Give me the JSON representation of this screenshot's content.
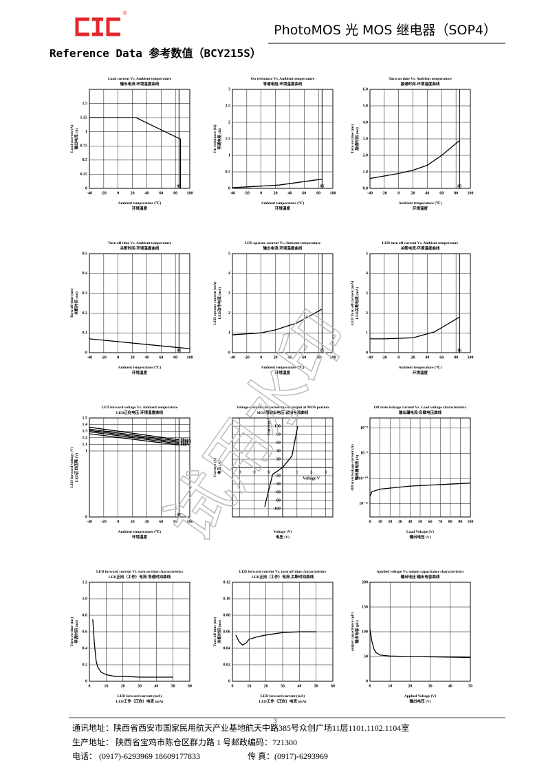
{
  "header": {
    "logo_mark": "®",
    "title": "PhotoMOS 光 MOS 继电器（SOP4）"
  },
  "section_title": "Reference Data 参考数值（BCY215S）",
  "watermark": "试用水印",
  "page_number": "3",
  "footer": [
    "通讯地址：陕西省西安市国家民用航天产业基地航天中路385号众创广场11层1101.1102.1104室",
    "生产地址：  陕西省宝鸡市陈仓区群力路 1 号邮政编码：721300",
    "电话：   (0917)-6293969    18609177833",
    "传    真：(0917)-6293969"
  ],
  "chart_data": [
    {
      "type": "line",
      "title": "Load current Vs. Ambient temperature",
      "subtitle": "输出电流-环境温度曲线",
      "xlabel": "Ambient temperature (℃)",
      "xlabel2": "环境温度",
      "ylabel": "Load current (A)",
      "ylabel2": "输出电流 (A)",
      "x": [
        -40,
        25,
        87,
        87
      ],
      "values": [
        1.25,
        1.25,
        0.87,
        0
      ],
      "color": "#000000",
      "xlim": [
        -40,
        100
      ],
      "xticks": [
        -40,
        -20,
        0,
        20,
        40,
        60,
        80,
        100
      ],
      "ylim": [
        0,
        1.75
      ],
      "yticks": [
        0,
        0.25,
        0.5,
        0.75,
        1,
        1.25,
        1.5
      ],
      "vline": 85,
      "grid": true
    },
    {
      "type": "line",
      "title": "On resistance Vs. Ambient temperature",
      "subtitle": "导通电阻-环境温度曲线",
      "xlabel": "Ambient temperature (℃)",
      "xlabel2": "环境温度",
      "ylabel": "On resistance (Ω)",
      "ylabel2": "导通电阻 (Ω)",
      "x": [
        -40,
        25,
        85
      ],
      "values": [
        0.02,
        0.1,
        0.28
      ],
      "color": "#000000",
      "xlim": [
        -40,
        100
      ],
      "xticks": [
        -40,
        -20,
        0,
        20,
        40,
        60,
        80,
        100
      ],
      "ylim": [
        0,
        3
      ],
      "yticks": [
        0,
        0.5,
        1,
        1.5,
        2,
        2.5,
        3
      ],
      "vline": 85,
      "grid": true
    },
    {
      "type": "line",
      "title": "Turn on time Vs. Ambient temperature",
      "subtitle": "接通时间-环境温度曲线",
      "xlabel": "Ambient temperature (℃)",
      "xlabel2": "环境温度",
      "ylabel": "Turn on time (ms)",
      "ylabel2": "接通时间 (ms)",
      "x": [
        -40,
        0,
        20,
        40,
        60,
        85
      ],
      "values": [
        0.6,
        0.9,
        1.1,
        1.4,
        2.0,
        2.9
      ],
      "color": "#000000",
      "xlim": [
        -40,
        100
      ],
      "xticks": [
        -40,
        -20,
        0,
        20,
        40,
        60,
        80,
        100
      ],
      "ylim": [
        0,
        6
      ],
      "yticks": [
        {
          "value": 0,
          "label": "0.0"
        },
        {
          "value": 1,
          "label": "1.0"
        },
        {
          "value": 2,
          "label": "2.0"
        },
        {
          "value": 3,
          "label": "3.0"
        },
        {
          "value": 4,
          "label": "4.0"
        },
        {
          "value": 5,
          "label": "5.0"
        },
        {
          "value": 6,
          "label": "6.0"
        }
      ],
      "vline": 85,
      "grid": true
    },
    {
      "type": "line",
      "title": "Turn off time Vs. Ambient temperature",
      "subtitle": "关断时间-环境温度曲线",
      "xlabel": "Ambient temperature (℃)",
      "xlabel2": "环境温度",
      "ylabel": "Turn off time (ms)",
      "ylabel2": "关断时间 (ms)",
      "x": [
        -40,
        100
      ],
      "values": [
        0.07,
        0.02
      ],
      "color": "#000000",
      "xlim": [
        -40,
        100
      ],
      "xticks": [
        -40,
        -20,
        0,
        20,
        40,
        60,
        80,
        100
      ],
      "ylim": [
        0,
        0.5
      ],
      "yticks": [
        0,
        0.1,
        0.2,
        0.3,
        0.4,
        0.5
      ],
      "vline": 85,
      "grid": true
    },
    {
      "type": "line",
      "title": "LED operate current Vs. Ambient temperature",
      "subtitle": "输出电流-环境温度曲线",
      "xlabel": "Ambient temperature (℃)",
      "xlabel2": "环境温度",
      "ylabel": "LED operate current (mA)",
      "ylabel2": "LED动作电流 (mA)",
      "x": [
        -40,
        0,
        20,
        50,
        85
      ],
      "values": [
        0.9,
        1.0,
        1.15,
        1.5,
        2.2
      ],
      "color": "#000000",
      "xlim": [
        -40,
        100
      ],
      "xticks": [
        -40,
        -20,
        0,
        20,
        40,
        60,
        80,
        100
      ],
      "ylim": [
        0,
        5
      ],
      "yticks": [
        0,
        1,
        2,
        3,
        4,
        5
      ],
      "vline": 85,
      "grid": true
    },
    {
      "type": "line",
      "title": "LED turn off current Vs. Ambient temperature",
      "subtitle": "关断电流-环境温度曲线",
      "xlabel": "Ambient temperature (℃)",
      "xlabel2": "环境温度",
      "ylabel": "LED Turn off current (mA)",
      "ylabel2": "LED关断电流 (mA)",
      "x": [
        -40,
        -20,
        20,
        50,
        85
      ],
      "values": [
        0.7,
        0.7,
        0.75,
        1.05,
        1.8
      ],
      "color": "#000000",
      "xlim": [
        -40,
        100
      ],
      "xticks": [
        -40,
        -20,
        0,
        20,
        40,
        60,
        80,
        100
      ],
      "ylim": [
        0,
        5
      ],
      "yticks": [
        0,
        1,
        2,
        3,
        4,
        5
      ],
      "vline": 85,
      "grid": true
    },
    {
      "type": "line",
      "title": "LED forward voltage Vs. Ambient temperature",
      "subtitle": "LED正向电压-环境温度曲线",
      "xlabel": "Ambient temperature (℃)",
      "xlabel2": "环境温度",
      "ylabel": "LED forward voltage (V)",
      "ylabel2": "LED正向压降 (V)",
      "x": [
        -40,
        85
      ],
      "series": [
        {
          "name": "50mA",
          "color": "#000000",
          "values": [
            1.36,
            1.17
          ]
        },
        {
          "name": "20mA",
          "color": "#000000",
          "values": [
            1.33,
            1.15
          ]
        },
        {
          "name": "10mA",
          "color": "#000000",
          "values": [
            1.31,
            1.13
          ]
        },
        {
          "name": "5mA",
          "color": "#000000",
          "values": [
            1.29,
            1.11
          ]
        },
        {
          "name": "1mA",
          "color": "#000000",
          "values": [
            1.26,
            1.09
          ]
        }
      ],
      "xlim": [
        -40,
        100
      ],
      "xticks": [
        -40,
        -20,
        0,
        20,
        40,
        60,
        80,
        100
      ],
      "ylim": [
        0,
        1.5
      ],
      "yticks": [
        0,
        1,
        1.1,
        1.2,
        1.3,
        1.4,
        1.5
      ],
      "vline": 85,
      "grid": true
    },
    {
      "type": "line",
      "title": "Voltage-current characteristics of output at MOS portion",
      "subtitle": "MOS管输出电压-输出电流曲线",
      "xlabel": "Voltage (V)",
      "xlabel2": "电压 (V)",
      "ylabel": "Current (A)",
      "ylabel2": "电流 (A)",
      "inner_xlabel": "Voltage V",
      "inner_ylabel": "Current A",
      "center_axes": true,
      "x": [
        -1.25,
        -0.7,
        0,
        0.65,
        1.05
      ],
      "values": [
        -95,
        -17,
        0,
        28,
        100
      ],
      "color": "#000000",
      "xlim": [
        -3.5,
        3.5
      ],
      "xticks": [
        -3,
        -2,
        -1,
        1,
        2,
        3
      ],
      "ylim": [
        -120,
        120
      ],
      "yticks": [
        -100,
        -80,
        -60,
        -40,
        -20,
        20,
        40,
        60,
        80,
        100
      ],
      "grid": true
    },
    {
      "type": "line",
      "title": "Off state leakage current Vs. Load voltage characteristics",
      "subtitle": "输出漏电流-负载电压曲线",
      "xlabel": "Load Voltage (V)",
      "xlabel2": "输出电压 (V)",
      "ylabel": "Off state leakage current (A)",
      "ylabel2": "输出漏电流 (A)",
      "log_y": true,
      "x": [
        0,
        2,
        10,
        40,
        100
      ],
      "values": [
        2e-11,
        3e-11,
        3.8e-11,
        5e-11,
        6.6e-11
      ],
      "color": "#000000",
      "xlim": [
        0,
        100
      ],
      "xticks": [
        0,
        10,
        20,
        30,
        40,
        50,
        60,
        70,
        80,
        90,
        100
      ],
      "ylim": [
        3e-12,
        2.5e-08
      ],
      "yticks": [
        {
          "value": 1e-11,
          "label": "10⁻¹¹"
        },
        {
          "value": 1e-10,
          "label": "10⁻¹⁰"
        },
        {
          "value": 1e-09,
          "label": "10⁻⁹"
        },
        {
          "value": 1e-08,
          "label": "10⁻⁸"
        }
      ],
      "grid": true
    },
    {
      "type": "line",
      "title": "LED forward current Vs. turn on time characteristics",
      "subtitle": "LED正向（工作）电流-导通时间曲线",
      "xlabel": "LED forward current (mA)",
      "xlabel2": "LED工作（正向）电流 (mA)",
      "ylabel": "Turn on time (ms)",
      "ylabel2": "导通时间 (ms)",
      "x": [
        2,
        3,
        4,
        5,
        7,
        10,
        15,
        20,
        30,
        50
      ],
      "values": [
        0.75,
        0.45,
        0.25,
        0.17,
        0.11,
        0.08,
        0.06,
        0.06,
        0.05,
        0.05
      ],
      "color": "#000000",
      "xlim": [
        0,
        60
      ],
      "xticks": [
        0,
        10,
        20,
        30,
        40,
        50,
        60
      ],
      "ylim": [
        0,
        1.2
      ],
      "yticks": [
        0,
        0.2,
        0.4,
        0.6,
        0.8,
        {
          "value": 1,
          "label": "1.0"
        },
        1.2
      ],
      "grid": true
    },
    {
      "type": "line",
      "title": "LED forward current Vs. turn off time characteristics",
      "subtitle": "LED正向（工作）电流-关断时间曲线",
      "xlabel": "LED forward current (mA)",
      "xlabel2": "LED工作（正向）电流 (mA)",
      "ylabel": "Turn off time (ms)",
      "ylabel2": "关断时间 (ms)",
      "x": [
        2,
        4,
        6,
        8,
        10,
        15,
        20,
        30,
        40,
        50
      ],
      "values": [
        0.056,
        0.048,
        0.044,
        0.046,
        0.051,
        0.054,
        0.056,
        0.059,
        0.06,
        0.06
      ],
      "color": "#000000",
      "xlim": [
        0,
        60
      ],
      "xticks": [
        0,
        10,
        20,
        30,
        40,
        50,
        60
      ],
      "ylim": [
        0,
        0.12
      ],
      "yticks": [
        0,
        0.02,
        0.04,
        0.06,
        0.08,
        {
          "value": 0.1,
          "label": "0.10"
        },
        0.12
      ],
      "grid": true
    },
    {
      "type": "line",
      "title": "Applied voltage Vs. output capacitance characteristics",
      "subtitle": "输出电压-输出电容曲线",
      "xlabel": "Applied Voltage (V)",
      "xlabel2": "输出电压 (V)",
      "ylabel": "output capacitance (pF)",
      "ylabel2": "输出电容 (pF)",
      "x": [
        0,
        1,
        2,
        3,
        5,
        10,
        20,
        50
      ],
      "values": [
        105,
        80,
        65,
        58,
        53,
        51,
        50,
        48
      ],
      "color": "#000000",
      "xlim": [
        0,
        50
      ],
      "xticks": [
        0,
        10,
        20,
        30,
        40,
        50
      ],
      "ylim": [
        0,
        200
      ],
      "yticks": [
        0,
        50,
        100,
        150,
        200
      ],
      "grid": true
    }
  ]
}
